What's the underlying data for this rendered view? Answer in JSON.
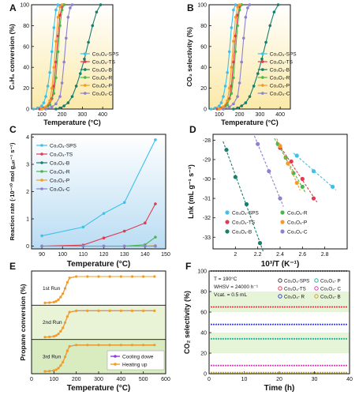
{
  "figure": {
    "panels": [
      "A",
      "B",
      "C",
      "D",
      "E",
      "F"
    ],
    "colors": {
      "SPS": "#3ec0e8",
      "TS": "#e23a4e",
      "B": "#157f6e",
      "R": "#49b84b",
      "P": "#f39c24",
      "C": "#8b83cf"
    }
  },
  "chart_data": [
    {
      "panel": "A",
      "type": "line",
      "xlabel": "Temperature (°C)",
      "ylabel": "C3H8 conversion (%)",
      "xlim": [
        50,
        450
      ],
      "ylim": [
        0,
        100
      ],
      "xticks": [
        100,
        200,
        300,
        400
      ],
      "yticks": [
        0,
        20,
        40,
        60,
        80,
        100
      ],
      "legend_position": "right-middle",
      "background": "yellow-gradient",
      "series": [
        {
          "name": "Co3O4-SPS",
          "color": "#3ec0e8",
          "x": [
            60,
            80,
            100,
            110,
            120,
            130,
            140,
            150,
            160,
            170,
            180
          ],
          "y": [
            0,
            1,
            3,
            6,
            12,
            22,
            35,
            55,
            78,
            95,
            100
          ]
        },
        {
          "name": "Co3O4-TS",
          "color": "#e23a4e",
          "x": [
            90,
            110,
            130,
            150,
            160,
            170,
            180,
            190,
            200,
            210
          ],
          "y": [
            0,
            1,
            3,
            10,
            22,
            45,
            70,
            90,
            98,
            100
          ]
        },
        {
          "name": "Co3O4-B",
          "color": "#157f6e",
          "x": [
            170,
            190,
            210,
            230,
            250,
            270,
            290,
            310,
            330,
            350,
            370,
            390
          ],
          "y": [
            0,
            1,
            3,
            6,
            12,
            22,
            34,
            48,
            64,
            80,
            93,
            100
          ]
        },
        {
          "name": "Co3O4-R",
          "color": "#49b84b",
          "x": [
            100,
            120,
            140,
            160,
            170,
            180,
            190,
            200,
            210
          ],
          "y": [
            0,
            1,
            4,
            15,
            30,
            55,
            80,
            95,
            100
          ]
        },
        {
          "name": "Co3O4-P",
          "color": "#f39c24",
          "x": [
            100,
            120,
            140,
            150,
            160,
            170,
            180,
            190,
            200
          ],
          "y": [
            0,
            2,
            8,
            20,
            40,
            65,
            88,
            98,
            100
          ]
        },
        {
          "name": "Co3O4-C",
          "color": "#8b83cf",
          "x": [
            120,
            150,
            170,
            190,
            200,
            210,
            220,
            230,
            240,
            250
          ],
          "y": [
            0,
            2,
            5,
            12,
            25,
            45,
            68,
            88,
            97,
            100
          ]
        }
      ]
    },
    {
      "panel": "B",
      "type": "line",
      "xlabel": "Temperature (°C)",
      "ylabel": "CO2 selectivity (%)",
      "xlim": [
        50,
        450
      ],
      "ylim": [
        0,
        100
      ],
      "xticks": [
        100,
        200,
        300,
        400
      ],
      "yticks": [
        0,
        20,
        40,
        60,
        80,
        100
      ],
      "legend_position": "right-middle",
      "background": "yellow-gradient",
      "series": [
        {
          "name": "Co3O4-SPS",
          "color": "#3ec0e8",
          "x": [
            60,
            80,
            100,
            110,
            120,
            130,
            140,
            150,
            160,
            170,
            180
          ],
          "y": [
            0,
            1,
            3,
            6,
            12,
            22,
            35,
            55,
            78,
            95,
            100
          ]
        },
        {
          "name": "Co3O4-TS",
          "color": "#e23a4e",
          "x": [
            90,
            110,
            130,
            150,
            160,
            170,
            180,
            190,
            200,
            210
          ],
          "y": [
            0,
            1,
            3,
            10,
            22,
            45,
            70,
            90,
            98,
            100
          ]
        },
        {
          "name": "Co3O4-B",
          "color": "#157f6e",
          "x": [
            170,
            190,
            210,
            230,
            250,
            270,
            290,
            310,
            330,
            350,
            370,
            390
          ],
          "y": [
            0,
            1,
            3,
            6,
            12,
            22,
            34,
            48,
            64,
            80,
            93,
            100
          ]
        },
        {
          "name": "Co3O4-R",
          "color": "#49b84b",
          "x": [
            100,
            120,
            140,
            160,
            170,
            180,
            190,
            200,
            210
          ],
          "y": [
            0,
            1,
            4,
            15,
            30,
            55,
            80,
            95,
            100
          ]
        },
        {
          "name": "Co3O4-P",
          "color": "#f39c24",
          "x": [
            100,
            120,
            140,
            150,
            160,
            170,
            180,
            190,
            200
          ],
          "y": [
            0,
            2,
            8,
            20,
            40,
            65,
            88,
            98,
            100
          ]
        },
        {
          "name": "Co3O4-C",
          "color": "#8b83cf",
          "x": [
            120,
            150,
            170,
            190,
            200,
            210,
            220,
            230,
            240,
            250
          ],
          "y": [
            0,
            2,
            5,
            12,
            25,
            45,
            68,
            88,
            97,
            100
          ]
        }
      ]
    },
    {
      "panel": "C",
      "type": "line",
      "xlabel": "Temperature (°C)",
      "ylabel": "Reaction rate (·10^-10 mol g_cat^-1 s^-1)",
      "xlim": [
        85,
        150
      ],
      "ylim": [
        -0.1,
        4.1
      ],
      "xticks": [
        90,
        100,
        110,
        120,
        130,
        140,
        150
      ],
      "yticks": [
        0,
        1,
        2,
        3,
        4
      ],
      "legend_position": "top-left",
      "background": "blue-gradient",
      "series": [
        {
          "name": "Co3O4-SPS",
          "color": "#3ec0e8",
          "x": [
            90,
            110,
            120,
            130,
            145
          ],
          "y": [
            0.38,
            0.7,
            1.2,
            1.6,
            3.9
          ]
        },
        {
          "name": "Co3O4-TS",
          "color": "#e23a4e",
          "x": [
            90,
            110,
            120,
            130,
            140,
            145
          ],
          "y": [
            0.0,
            0.04,
            0.3,
            0.55,
            0.85,
            1.55
          ]
        },
        {
          "name": "Co3O4-B",
          "color": "#157f6e",
          "x": [
            90,
            110,
            120,
            130,
            140,
            145
          ],
          "y": [
            0,
            0,
            0,
            0,
            0,
            0
          ]
        },
        {
          "name": "Co3O4-R",
          "color": "#49b84b",
          "x": [
            90,
            110,
            120,
            130,
            140,
            145
          ],
          "y": [
            0,
            0,
            0,
            0,
            0.05,
            0.33
          ]
        },
        {
          "name": "Co3O4-P",
          "color": "#f39c24",
          "x": [
            90,
            110,
            120,
            130,
            140,
            145
          ],
          "y": [
            0,
            0,
            0,
            0,
            0,
            0.02
          ]
        },
        {
          "name": "Co3O4-C",
          "color": "#8b83cf",
          "x": [
            90,
            110,
            120,
            130,
            140,
            145
          ],
          "y": [
            0,
            0,
            0,
            0,
            0,
            0
          ]
        }
      ]
    },
    {
      "panel": "D",
      "type": "scatter",
      "xlabel": "10^3/T (K^-1)",
      "ylabel": "Lnk (mL g^-1 s^-1)",
      "xlim": [
        1.8,
        3.0
      ],
      "ylim": [
        -33.6,
        -27.7
      ],
      "xticks": [
        2.0,
        2.2,
        2.4,
        2.6,
        2.8
      ],
      "yticks": [
        -33,
        -32,
        -31,
        -30,
        -29,
        -28
      ],
      "legend_position": "bottom-middle",
      "background": "none",
      "series": [
        {
          "name": "Co3O4-SPS",
          "color": "#3ec0e8",
          "x": [
            2.55,
            2.7,
            2.87
          ],
          "y": [
            -28.8,
            -29.6,
            -30.4
          ]
        },
        {
          "name": "Co3O4-TS",
          "color": "#e23a4e",
          "x": [
            2.4,
            2.5,
            2.6,
            2.7
          ],
          "y": [
            -28.4,
            -29.1,
            -30.0,
            -31.0
          ]
        },
        {
          "name": "Co3O4-B",
          "color": "#157f6e",
          "x": [
            1.92,
            2.0,
            2.1,
            2.22
          ],
          "y": [
            -28.5,
            -29.9,
            -31.3,
            -33.3
          ]
        },
        {
          "name": "Co3O4-R",
          "color": "#49b84b",
          "x": [
            2.38,
            2.45,
            2.52,
            2.6
          ],
          "y": [
            -28.2,
            -28.9,
            -29.7,
            -30.4
          ]
        },
        {
          "name": "Co3O4-P",
          "color": "#f39c24",
          "x": [
            2.4,
            2.47,
            2.55
          ],
          "y": [
            -28.3,
            -29.2,
            -30.2
          ]
        },
        {
          "name": "Co3O4-C",
          "color": "#8b83cf",
          "x": [
            2.2,
            2.3,
            2.4
          ],
          "y": [
            -28.2,
            -29.6,
            -31.0
          ]
        }
      ]
    },
    {
      "panel": "E",
      "type": "line",
      "xlabel": "Temperature (°C)",
      "ylabel": "Propane conversion (%)",
      "xlim": [
        0,
        600
      ],
      "xticks": [
        0,
        100,
        200,
        300,
        400,
        500,
        600
      ],
      "legend_position": "bottom-right",
      "runs": [
        {
          "label": "1st Run",
          "heating": {
            "x": [
              60,
              80,
              100,
              110,
              120,
              130,
              140,
              150,
              160,
              170,
              200,
              250,
              300,
              350,
              400,
              450,
              500,
              550
            ],
            "y": [
              0,
              1,
              3,
              6,
              12,
              22,
              35,
              55,
              78,
              95,
              100,
              100,
              100,
              100,
              100,
              100,
              100,
              100
            ]
          }
        },
        {
          "label": "2nd Run",
          "heating": {
            "x": [
              60,
              80,
              100,
              110,
              120,
              130,
              140,
              150,
              160,
              170,
              200,
              250,
              300,
              350,
              400,
              450,
              500,
              550
            ],
            "y": [
              0,
              1,
              3,
              6,
              12,
              22,
              35,
              55,
              78,
              95,
              100,
              100,
              100,
              100,
              100,
              100,
              100,
              100
            ]
          }
        },
        {
          "label": "3rd Run",
          "heating": {
            "x": [
              60,
              80,
              100,
              110,
              120,
              130,
              140,
              150,
              160,
              170,
              200,
              250,
              300,
              350,
              400,
              450,
              500,
              550
            ],
            "y": [
              0,
              1,
              3,
              6,
              12,
              22,
              35,
              55,
              78,
              95,
              100,
              100,
              100,
              100,
              100,
              100,
              100,
              100
            ]
          }
        }
      ],
      "legend": [
        "Cooling dowe",
        "Heating up"
      ],
      "legend_colors": [
        "#8b3fd6",
        "#f39c24"
      ]
    },
    {
      "panel": "F",
      "type": "line",
      "xlabel": "Time (h)",
      "ylabel": "CO2 selectivity (%)",
      "xlim": [
        0,
        40
      ],
      "ylim": [
        0,
        100
      ],
      "xticks": [
        0,
        10,
        20,
        30,
        40
      ],
      "yticks": [
        0,
        20,
        40,
        60,
        80,
        100
      ],
      "legend_position": "top",
      "annotations": [
        "T = 190°C",
        "WHSV = 24000 h⁻¹",
        "Vcat. = 0.5 mL"
      ],
      "background": "green-stripes",
      "series": [
        {
          "name": "Co3O4-SPS",
          "color": "#3a3a3a",
          "y_const": 100
        },
        {
          "name": "Co3O4-TS",
          "color": "#e23a4e",
          "y_const": 65
        },
        {
          "name": "Co3O4- R",
          "color": "#3b3fd6",
          "y_const": 48
        },
        {
          "name": "Co3O4- P",
          "color": "#2bb39a",
          "y_const": 34
        },
        {
          "name": "Co3O4- C",
          "color": "#d43fb8",
          "y_const": 8
        },
        {
          "name": "Co3O4- B",
          "color": "#c9a72a",
          "y_const": 1
        }
      ]
    }
  ],
  "texts": {
    "A": {
      "label": "A",
      "xlabel": "Temperature (°C)",
      "ylabel": "C₃H₈ conversion (%)"
    },
    "B": {
      "label": "B",
      "xlabel": "Temperature (°C)",
      "ylabel": "CO₂ selectivity (%)"
    },
    "C": {
      "label": "C",
      "xlabel": "Temperature (°C)",
      "ylabel": "Reaction rate (·10⁻¹⁰ mol g꜀ₐₜ⁻¹ s⁻¹)"
    },
    "D": {
      "label": "D",
      "xlabel": "10³/T (K⁻¹)",
      "ylabel": "Lnk (mL g⁻¹ s⁻¹)"
    },
    "E": {
      "label": "E",
      "xlabel": "Temperature (°C)",
      "ylabel": "Propane conversion (%)",
      "runs": [
        "1st Run",
        "2nd Run",
        "3rd Run"
      ],
      "legend": [
        "Cooling dowe",
        "Heating up"
      ]
    },
    "F": {
      "label": "F",
      "xlabel": "Time (h)",
      "ylabel": "CO₂ selectivity (%)",
      "annotations": [
        "T = 190°C",
        "WHSV = 24000 h⁻¹",
        "Vcat. = 0.5 mL"
      ]
    }
  },
  "legend_labels": {
    "A": [
      "Co₃O₄-SPS",
      "Co₃O₄-TS",
      "Co₃O₄-B",
      "Co₃O₄-R",
      "Co₃O₄-P",
      "Co₃O₄-C"
    ],
    "B": [
      "Co₃O₄-SPS",
      "Co₃O₄-TS",
      "Co₃O₄-B",
      "Co₃O₄-R",
      "Co₃O₄-P",
      "Co₃O₄-C"
    ],
    "C": [
      "Co₃O₄-SPS",
      "Co₃O₄-TS",
      "Co₃O₄-B",
      "Co₃O₄-R",
      "Co₃O₄-P",
      "Co₃O₄-C"
    ],
    "D": [
      "Co₃O₄-SPS",
      "Co₃O₄-R",
      "Co₃O₄-TS",
      "Co₃O₄-P",
      "Co₃O₄-B",
      "Co₃O₄-C"
    ],
    "F": [
      "Co₃O₄-SPS",
      "Co₃O₄- P",
      "Co₃O₄-TS",
      "Co₃O₄- C",
      "Co₃O₄- R",
      "Co₃O₄- B"
    ]
  }
}
